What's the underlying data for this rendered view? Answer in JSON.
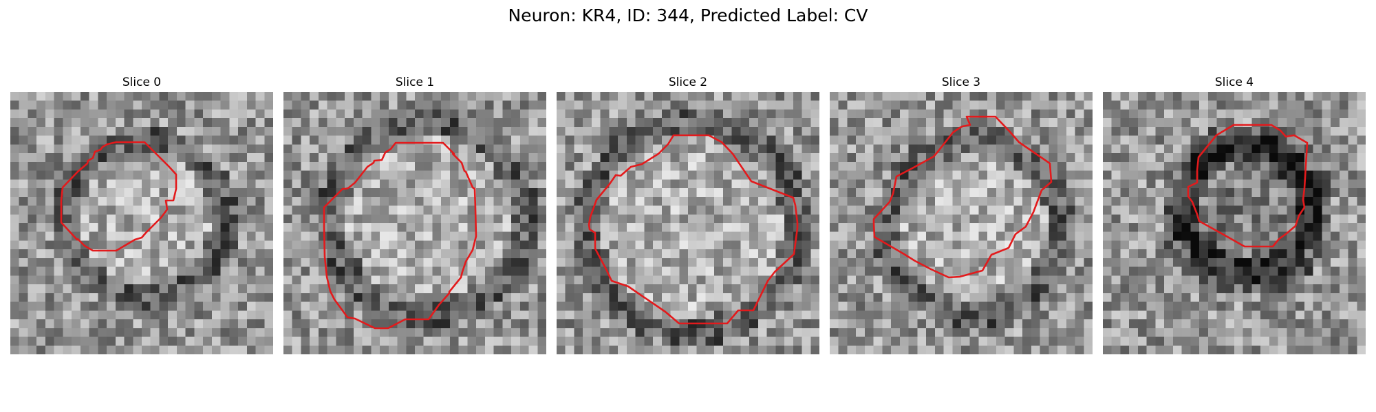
{
  "figure": {
    "title": "Neuron: KR4, ID: 344, Predicted Label: CV",
    "contour_color": "#e31a1c",
    "colormap": "gray"
  },
  "slices": [
    {
      "title": "Slice 0"
    },
    {
      "title": "Slice 1"
    },
    {
      "title": "Slice 2"
    },
    {
      "title": "Slice 3"
    },
    {
      "title": "Slice 4"
    }
  ]
}
